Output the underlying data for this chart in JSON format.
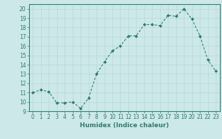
{
  "x": [
    0,
    1,
    2,
    3,
    4,
    5,
    6,
    7,
    8,
    9,
    10,
    11,
    12,
    13,
    14,
    15,
    16,
    17,
    18,
    19,
    20,
    21,
    22,
    23
  ],
  "y": [
    11.0,
    11.3,
    11.1,
    9.9,
    9.9,
    10.0,
    9.3,
    10.4,
    13.0,
    14.3,
    15.5,
    16.0,
    17.1,
    17.1,
    18.3,
    18.3,
    18.2,
    19.3,
    19.2,
    20.0,
    18.9,
    17.1,
    14.5,
    13.3
  ],
  "xlabel": "Humidex (Indice chaleur)",
  "xlim": [
    -0.5,
    23.5
  ],
  "ylim": [
    9,
    20.5
  ],
  "yticks": [
    9,
    10,
    11,
    12,
    13,
    14,
    15,
    16,
    17,
    18,
    19,
    20
  ],
  "xticks": [
    0,
    1,
    2,
    3,
    4,
    5,
    6,
    7,
    8,
    9,
    10,
    11,
    12,
    13,
    14,
    15,
    16,
    17,
    18,
    19,
    20,
    21,
    22,
    23
  ],
  "line_color": "#2e7d6e",
  "marker_color": "#2e7d6e",
  "bg_color": "#cce8e8",
  "grid_color": "#b8d8d8",
  "tick_fontsize": 5.5,
  "label_fontsize": 6.5
}
